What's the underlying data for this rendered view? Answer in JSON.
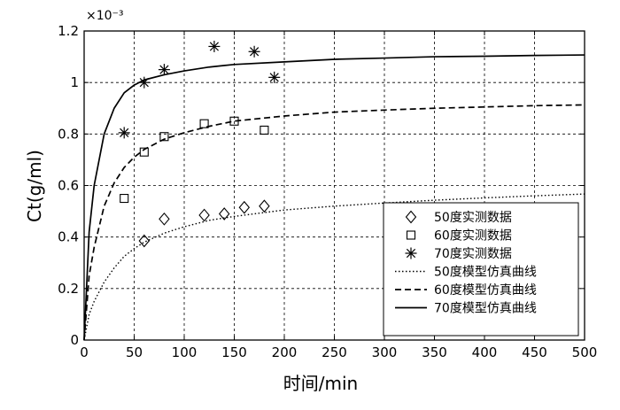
{
  "chart_data": {
    "type": "scatter",
    "xlabel": "时间/min",
    "ylabel": "Ct(g/ml)",
    "y_multiplier": "×10⁻³",
    "xlim": [
      0,
      500
    ],
    "ylim": [
      0,
      1.2
    ],
    "x_ticks": [
      0,
      50,
      100,
      150,
      200,
      250,
      300,
      350,
      400,
      450,
      500
    ],
    "y_ticks": [
      0,
      0.2,
      0.4,
      0.6,
      0.8,
      1,
      1.2
    ],
    "x_tick_labels": [
      "0",
      "50",
      "100",
      "150",
      "200",
      "250",
      "300",
      "350",
      "400",
      "450",
      "500"
    ],
    "y_tick_labels": [
      "0",
      "0.2",
      "0.4",
      "0.6",
      "0.8",
      "1",
      "1.2"
    ],
    "grid": true,
    "legend_position": "bottom-right",
    "series": [
      {
        "name": "50度实测数据",
        "kind": "points",
        "marker": "diamond",
        "x": [
          60,
          80,
          120,
          140,
          160,
          180
        ],
        "y": [
          0.385,
          0.47,
          0.485,
          0.49,
          0.515,
          0.52
        ]
      },
      {
        "name": "60度实测数据",
        "kind": "points",
        "marker": "square",
        "x": [
          40,
          60,
          80,
          120,
          150,
          180
        ],
        "y": [
          0.55,
          0.73,
          0.79,
          0.84,
          0.85,
          0.815
        ]
      },
      {
        "name": "70度实测数据",
        "kind": "points",
        "marker": "star",
        "x": [
          40,
          60,
          80,
          130,
          170,
          190
        ],
        "y": [
          0.805,
          1.0,
          1.05,
          1.14,
          1.12,
          1.02
        ]
      },
      {
        "name": "50度模型仿真曲线",
        "kind": "line",
        "dash": "dotted",
        "x": [
          0,
          5,
          10,
          20,
          30,
          40,
          50,
          60,
          80,
          100,
          125,
          150,
          200,
          250,
          300,
          350,
          400,
          450,
          500
        ],
        "y": [
          0,
          0.1,
          0.15,
          0.225,
          0.28,
          0.325,
          0.355,
          0.38,
          0.415,
          0.44,
          0.465,
          0.48,
          0.505,
          0.52,
          0.532,
          0.543,
          0.552,
          0.56,
          0.567
        ]
      },
      {
        "name": "60度模型仿真曲线",
        "kind": "line",
        "dash": "dashed",
        "x": [
          0,
          5,
          10,
          20,
          30,
          40,
          50,
          60,
          80,
          100,
          125,
          150,
          200,
          250,
          300,
          350,
          400,
          450,
          500
        ],
        "y": [
          0,
          0.25,
          0.36,
          0.52,
          0.61,
          0.67,
          0.71,
          0.74,
          0.78,
          0.805,
          0.83,
          0.85,
          0.87,
          0.885,
          0.893,
          0.9,
          0.905,
          0.91,
          0.913
        ]
      },
      {
        "name": "70度模型仿真曲线",
        "kind": "line",
        "dash": "solid",
        "x": [
          0,
          5,
          10,
          20,
          30,
          40,
          50,
          60,
          80,
          100,
          125,
          150,
          200,
          250,
          300,
          350,
          400,
          450,
          500
        ],
        "y": [
          0,
          0.42,
          0.6,
          0.8,
          0.9,
          0.96,
          0.99,
          1.01,
          1.03,
          1.045,
          1.06,
          1.07,
          1.08,
          1.09,
          1.095,
          1.1,
          1.102,
          1.105,
          1.107
        ]
      }
    ]
  }
}
